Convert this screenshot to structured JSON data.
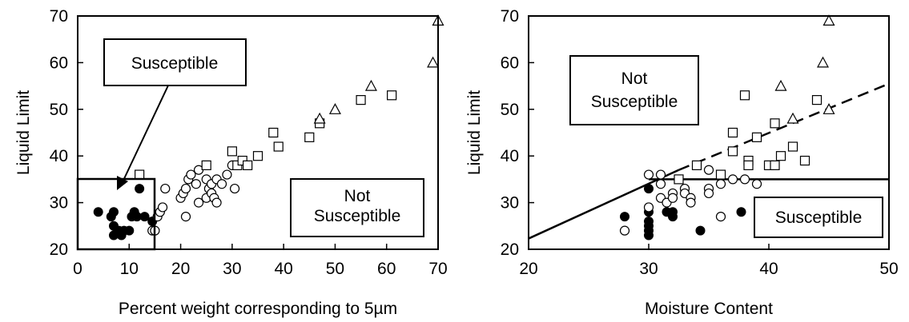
{
  "chart_data": [
    {
      "type": "scatter",
      "xlabel": "Percent weight corresponding to 5µm",
      "ylabel": "Liquid Limit",
      "xlim": [
        0,
        70
      ],
      "ylim": [
        20,
        70
      ],
      "xticks": [
        "0",
        "10",
        "20",
        "30",
        "40",
        "50",
        "60",
        "70"
      ],
      "yticks": [
        "20",
        "30",
        "40",
        "50",
        "60",
        "70"
      ],
      "grid": false,
      "annotations": {
        "susceptible": "Susceptible",
        "not_susceptible_line1": "Not",
        "not_susceptible_line2": "Susceptible"
      },
      "boundary": {
        "x_max": 15,
        "y_max": 35
      },
      "series": [
        {
          "marker": "filled-circle",
          "points": [
            [
              4,
              28
            ],
            [
              6.5,
              27
            ],
            [
              7,
              28
            ],
            [
              7,
              25
            ],
            [
              7,
              23
            ],
            [
              8,
              24
            ],
            [
              8.5,
              23
            ],
            [
              9,
              24
            ],
            [
              10,
              24
            ],
            [
              10.5,
              27
            ],
            [
              11,
              28
            ],
            [
              11.5,
              27
            ],
            [
              12,
              33
            ],
            [
              13,
              27
            ],
            [
              14.5,
              26
            ]
          ]
        },
        {
          "marker": "open-circle",
          "points": [
            [
              14.5,
              24
            ],
            [
              15,
              24
            ],
            [
              15.5,
              27
            ],
            [
              16,
              28
            ],
            [
              16.5,
              29
            ],
            [
              17,
              33
            ],
            [
              20,
              31
            ],
            [
              20.5,
              32
            ],
            [
              21,
              33
            ],
            [
              21,
              27
            ],
            [
              21.5,
              35
            ],
            [
              22,
              36
            ],
            [
              23,
              34
            ],
            [
              23.5,
              30
            ],
            [
              23.5,
              37
            ],
            [
              25,
              31
            ],
            [
              25,
              35
            ],
            [
              25.5,
              33
            ],
            [
              26,
              32
            ],
            [
              26,
              34
            ],
            [
              26.5,
              31
            ],
            [
              27,
              35
            ],
            [
              27,
              30
            ],
            [
              28,
              34
            ],
            [
              29,
              36
            ],
            [
              30,
              38
            ],
            [
              30.5,
              33
            ]
          ]
        },
        {
          "marker": "open-square",
          "points": [
            [
              12,
              36
            ],
            [
              25,
              38
            ],
            [
              30,
              41
            ],
            [
              31,
              38
            ],
            [
              32,
              39
            ],
            [
              33,
              38
            ],
            [
              35,
              40
            ],
            [
              38,
              45
            ],
            [
              39,
              42
            ],
            [
              45,
              44
            ],
            [
              47,
              47
            ],
            [
              55,
              52
            ],
            [
              61,
              53
            ]
          ]
        },
        {
          "marker": "open-triangle",
          "points": [
            [
              47,
              48
            ],
            [
              50,
              50
            ],
            [
              57,
              55
            ],
            [
              69,
              60
            ],
            [
              70,
              69
            ]
          ]
        }
      ]
    },
    {
      "type": "scatter",
      "xlabel": "Moisture Content",
      "ylabel": "Liquid Limit",
      "xlim": [
        20,
        50
      ],
      "ylim": [
        20,
        70
      ],
      "xticks": [
        "20",
        "30",
        "40",
        "50"
      ],
      "yticks": [
        "20",
        "30",
        "40",
        "50",
        "60",
        "70"
      ],
      "grid": false,
      "annotations": {
        "not_susceptible_line1": "Not",
        "not_susceptible_line2": "Susceptible",
        "susceptible": "Susceptible"
      },
      "boundary_lines": [
        {
          "style": "solid",
          "points": [
            [
              20,
              22.3
            ],
            [
              32.5,
              37
            ]
          ]
        },
        {
          "style": "solid",
          "points": [
            [
              30,
              35
            ],
            [
              50,
              35
            ]
          ]
        },
        {
          "style": "dashed",
          "points": [
            [
              32.5,
              37
            ],
            [
              50,
              55.5
            ]
          ]
        }
      ],
      "series": [
        {
          "marker": "filled-circle",
          "points": [
            [
              28,
              27
            ],
            [
              30,
              33
            ],
            [
              30,
              28
            ],
            [
              30,
              26
            ],
            [
              30,
              25
            ],
            [
              30,
              24
            ],
            [
              30,
              23
            ],
            [
              31.5,
              28
            ],
            [
              32,
              28
            ],
            [
              32,
              27
            ],
            [
              34.3,
              24
            ],
            [
              37.7,
              28
            ]
          ]
        },
        {
          "marker": "open-circle",
          "points": [
            [
              28,
              24
            ],
            [
              30,
              36
            ],
            [
              30,
              29
            ],
            [
              31,
              36
            ],
            [
              31,
              34
            ],
            [
              31,
              31
            ],
            [
              31.5,
              30
            ],
            [
              32,
              32
            ],
            [
              32,
              31
            ],
            [
              33,
              33
            ],
            [
              33,
              32
            ],
            [
              33.5,
              31
            ],
            [
              33.5,
              30
            ],
            [
              35,
              37
            ],
            [
              35,
              33
            ],
            [
              35,
              32
            ],
            [
              36,
              27
            ],
            [
              36,
              34
            ],
            [
              37,
              35
            ],
            [
              38,
              35
            ],
            [
              39,
              34
            ]
          ]
        },
        {
          "marker": "open-square",
          "points": [
            [
              32.5,
              35
            ],
            [
              34,
              38
            ],
            [
              36,
              36
            ],
            [
              37,
              41
            ],
            [
              37,
              45
            ],
            [
              38,
              53
            ],
            [
              38.3,
              39
            ],
            [
              38.3,
              38
            ],
            [
              39,
              44
            ],
            [
              40,
              38
            ],
            [
              40.5,
              38
            ],
            [
              40.5,
              47
            ],
            [
              41,
              40
            ],
            [
              42,
              42
            ],
            [
              43,
              39
            ],
            [
              44,
              52
            ]
          ]
        },
        {
          "marker": "open-triangle",
          "points": [
            [
              41,
              55
            ],
            [
              42,
              48
            ],
            [
              44.5,
              60
            ],
            [
              45,
              50
            ],
            [
              45,
              69
            ]
          ]
        }
      ]
    }
  ]
}
